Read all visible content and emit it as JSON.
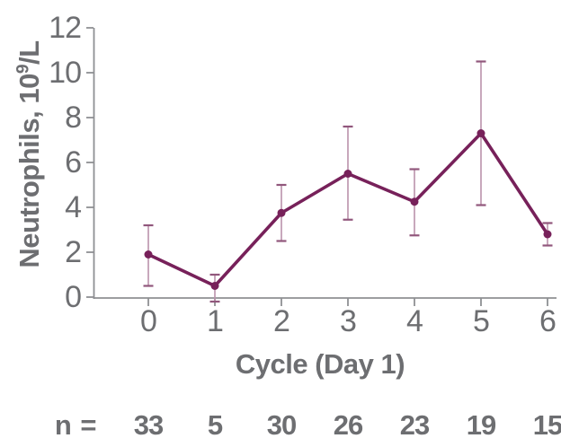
{
  "chart_data": {
    "type": "line",
    "title": "",
    "xlabel": "Cycle (Day 1)",
    "ylabel": "Neutrophils, 10⁹/L",
    "ylabel_parts": {
      "prefix": "Neutrophils, 10",
      "sup": "9",
      "suffix": "/L"
    },
    "x": [
      0,
      1,
      2,
      3,
      4,
      5,
      6
    ],
    "series": [
      {
        "name": "Neutrophils",
        "values": [
          1.9,
          0.5,
          3.75,
          5.5,
          4.25,
          7.3,
          2.8
        ],
        "error_low": [
          0.5,
          -0.2,
          2.5,
          3.45,
          2.75,
          4.1,
          2.3
        ],
        "error_high": [
          3.2,
          1.0,
          5.0,
          7.6,
          5.7,
          10.5,
          3.3
        ]
      }
    ],
    "ylim": [
      0,
      12
    ],
    "yticks": [
      0,
      2,
      4,
      6,
      8,
      10,
      12
    ],
    "grid": false,
    "legend": "none",
    "n_row": {
      "label": "n =",
      "values": [
        "33",
        "5",
        "30",
        "26",
        "23",
        "19",
        "15"
      ]
    },
    "colors": {
      "line": "#77215a",
      "marker": "#77215a",
      "error_bar": "#bb93ac",
      "error_cap": "#91577c",
      "axis": "#8e9093",
      "text": "#6d6e71"
    }
  }
}
